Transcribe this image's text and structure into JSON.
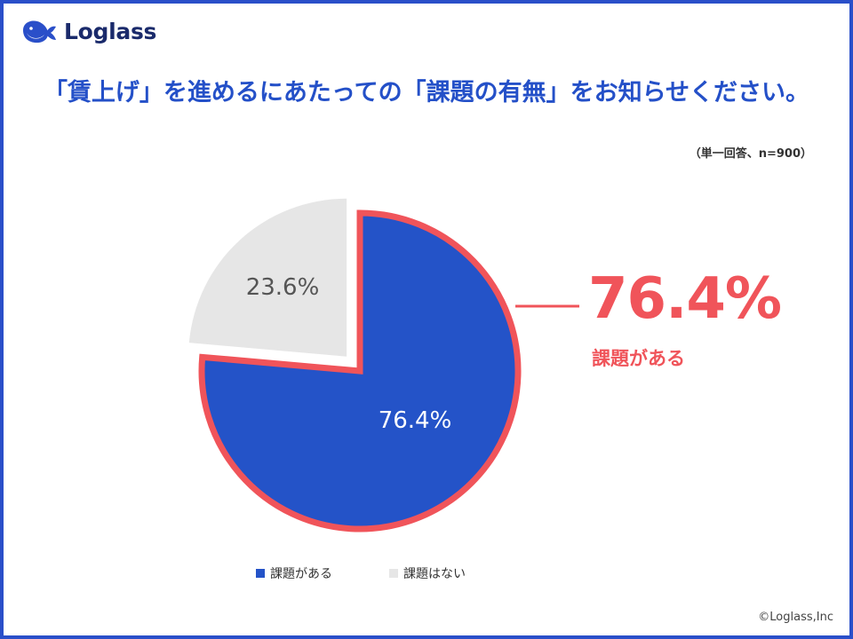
{
  "logo": {
    "text": "Loglass",
    "icon": "whale-icon"
  },
  "title": "「賃上げ」を進めるにあたっての「課題の有無」をお知らせください。",
  "note": "（単一回答、n=900）",
  "callout": {
    "value": "76.4%",
    "label": "課題がある"
  },
  "copyright": "©Loglass,Inc",
  "colors": {
    "frame": "#2a4fc9",
    "title": "#2450c8",
    "primary_slice": "#2453c8",
    "secondary_slice": "#e6e6e6",
    "highlight": "#f0545a"
  },
  "chart_data": {
    "type": "pie",
    "categories": [
      "課題がある",
      "課題はない"
    ],
    "values": [
      76.4,
      23.6
    ],
    "data_labels": [
      "76.4%",
      "23.6%"
    ],
    "colors": [
      "#2453c8",
      "#e6e6e6"
    ],
    "exploded": [
      false,
      true
    ],
    "legend_position": "bottom"
  }
}
